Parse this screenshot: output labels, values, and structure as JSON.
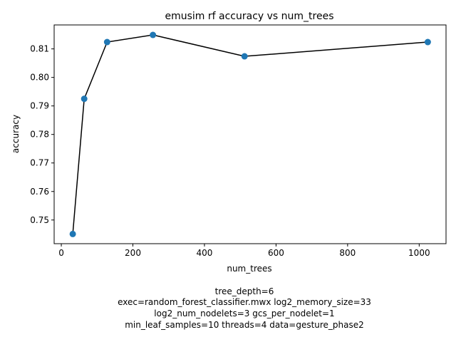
{
  "chart_data": {
    "type": "line",
    "title": "emusim rf accuracy vs num_trees",
    "xlabel": "num_trees",
    "ylabel": "accuracy",
    "xlim": [
      -20,
      1075
    ],
    "ylim": [
      0.7417,
      0.8184
    ],
    "xticks": [
      0,
      200,
      400,
      600,
      800,
      1000
    ],
    "yticks": [
      0.75,
      0.76,
      0.77,
      0.78,
      0.79,
      0.8,
      0.81
    ],
    "xtick_labels": [
      "0",
      "200",
      "400",
      "600",
      "800",
      "1000"
    ],
    "ytick_labels": [
      "0.75",
      "0.76",
      "0.77",
      "0.78",
      "0.79",
      "0.80",
      "0.81"
    ],
    "grid": false,
    "series": [
      {
        "x": [
          32,
          64,
          128,
          256,
          512,
          1024
        ],
        "y": [
          0.7451,
          0.7925,
          0.8124,
          0.8149,
          0.8074,
          0.8124
        ],
        "line_color": "#000000",
        "marker_color": "#1f77b4",
        "marker": "circle"
      }
    ],
    "annotations": [
      "tree_depth=6",
      "exec=random_forest_classifier.mwx   log2_memory_size=33",
      "log2_num_nodelets=3   gcs_per_nodelet=1",
      "min_leaf_samples=10   threads=4   data=gesture_phase2"
    ]
  }
}
